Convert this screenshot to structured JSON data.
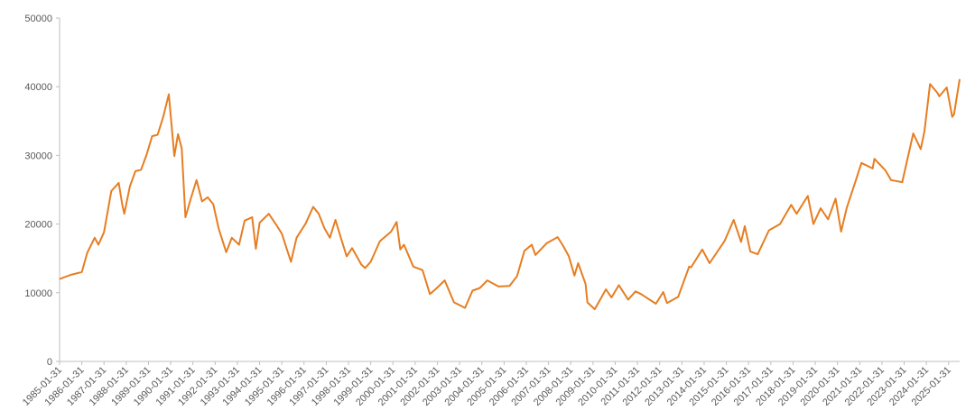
{
  "chart_data": {
    "type": "line",
    "x": [
      "1985-01-31",
      "1985-07-31",
      "1986-01-31",
      "1986-04-30",
      "1986-08-31",
      "1986-10-31",
      "1987-01-31",
      "1987-05-31",
      "1987-09-30",
      "1987-11-30",
      "1987-12-31",
      "1988-03-31",
      "1988-06-30",
      "1988-09-30",
      "1988-12-31",
      "1989-03-31",
      "1989-06-30",
      "1989-09-30",
      "1989-12-31",
      "1990-03-31",
      "1990-05-31",
      "1990-07-31",
      "1990-09-30",
      "1990-12-31",
      "1991-03-31",
      "1991-06-30",
      "1991-09-30",
      "1991-12-31",
      "1992-03-31",
      "1992-07-31",
      "1992-10-31",
      "1993-02-28",
      "1993-05-31",
      "1993-09-30",
      "1993-11-30",
      "1994-01-31",
      "1994-06-30",
      "1994-10-31",
      "1995-01-31",
      "1995-06-30",
      "1995-09-30",
      "1996-02-29",
      "1996-06-30",
      "1996-09-30",
      "1996-12-31",
      "1997-03-31",
      "1997-06-30",
      "1997-09-30",
      "1997-12-31",
      "1998-03-31",
      "1998-08-31",
      "1998-10-31",
      "1999-01-31",
      "1999-06-30",
      "1999-12-31",
      "2000-03-31",
      "2000-05-31",
      "2000-07-31",
      "2000-12-31",
      "2001-05-31",
      "2001-09-30",
      "2001-12-31",
      "2002-05-31",
      "2002-10-31",
      "2003-04-30",
      "2003-08-31",
      "2003-12-31",
      "2004-04-30",
      "2004-10-31",
      "2005-04-30",
      "2005-08-31",
      "2005-12-31",
      "2006-04-30",
      "2006-06-30",
      "2006-12-31",
      "2007-06-30",
      "2007-09-30",
      "2007-12-31",
      "2008-03-31",
      "2008-05-31",
      "2008-09-30",
      "2008-10-31",
      "2009-02-28",
      "2009-08-31",
      "2009-11-30",
      "2010-03-31",
      "2010-08-31",
      "2010-12-31",
      "2011-03-31",
      "2011-11-30",
      "2012-03-31",
      "2012-05-31",
      "2012-11-30",
      "2013-05-31",
      "2013-06-30",
      "2013-12-31",
      "2014-04-30",
      "2014-12-31",
      "2015-05-31",
      "2015-09-30",
      "2015-11-30",
      "2016-02-29",
      "2016-06-30",
      "2016-12-31",
      "2017-06-30",
      "2017-12-31",
      "2018-03-31",
      "2018-09-30",
      "2018-12-31",
      "2019-04-30",
      "2019-08-31",
      "2019-12-31",
      "2020-03-31",
      "2020-06-30",
      "2020-11-30",
      "2021-02-28",
      "2021-08-31",
      "2021-09-30",
      "2022-03-31",
      "2022-06-30",
      "2022-12-31",
      "2023-06-30",
      "2023-10-31",
      "2023-12-31",
      "2024-03-31",
      "2024-07-31",
      "2024-08-31",
      "2024-12-31",
      "2025-03-31",
      "2025-04-30",
      "2025-07-31"
    ],
    "series": [
      {
        "color": "#e67e22",
        "values": [
          12000,
          12600,
          13000,
          15800,
          18000,
          17000,
          18800,
          24800,
          26000,
          22700,
          21500,
          25500,
          27700,
          27900,
          30100,
          32800,
          33000,
          35600,
          38900,
          29900,
          33100,
          31000,
          21000,
          23800,
          26400,
          23300,
          23900,
          22900,
          19300,
          15900,
          18000,
          17000,
          20500,
          21000,
          16400,
          20200,
          21500,
          19900,
          18600,
          14500,
          18000,
          20100,
          22500,
          21500,
          19400,
          18000,
          20600,
          17900,
          15300,
          16500,
          14100,
          13600,
          14500,
          17500,
          18900,
          20300,
          16300,
          17000,
          13800,
          13300,
          9800,
          10500,
          11800,
          8600,
          7800,
          10300,
          10700,
          11800,
          10900,
          11000,
          12400,
          16100,
          17000,
          15500,
          17200,
          18100,
          16800,
          15300,
          12500,
          14300,
          11300,
          8600,
          7600,
          10500,
          9300,
          11100,
          9000,
          10200,
          9800,
          8400,
          10100,
          8500,
          9400,
          13800,
          13700,
          16300,
          14300,
          17500,
          20600,
          17400,
          19700,
          16000,
          15600,
          19100,
          20000,
          22800,
          21500,
          24100,
          20000,
          22300,
          20700,
          23700,
          18900,
          22300,
          26400,
          28900,
          28100,
          29500,
          27800,
          26400,
          26100,
          33200,
          30900,
          33500,
          40400,
          39100,
          38600,
          39900,
          35600,
          36000,
          41100
        ]
      }
    ],
    "xlim": [
      "1985-01-31",
      "2025-07-31"
    ],
    "xticks": [
      "1985-01-31",
      "1986-01-31",
      "1987-01-31",
      "1988-01-31",
      "1989-01-31",
      "1990-01-31",
      "1991-01-31",
      "1992-01-31",
      "1993-01-31",
      "1994-01-31",
      "1995-01-31",
      "1996-01-31",
      "1997-01-31",
      "1998-01-31",
      "1999-01-31",
      "2000-01-31",
      "2001-01-31",
      "2002-01-31",
      "2003-01-31",
      "2004-01-31",
      "2005-01-31",
      "2006-01-31",
      "2007-01-31",
      "2008-01-31",
      "2009-01-31",
      "2010-01-31",
      "2011-01-31",
      "2012-01-31",
      "2013-01-31",
      "2014-01-31",
      "2015-01-31",
      "2016-01-31",
      "2017-01-31",
      "2018-01-31",
      "2019-01-31",
      "2020-01-31",
      "2021-01-31",
      "2022-01-31",
      "2023-01-31",
      "2024-01-31",
      "2025-01-31"
    ],
    "ylim": [
      0,
      50000
    ],
    "yticks": [
      0,
      10000,
      20000,
      30000,
      40000,
      50000
    ]
  }
}
